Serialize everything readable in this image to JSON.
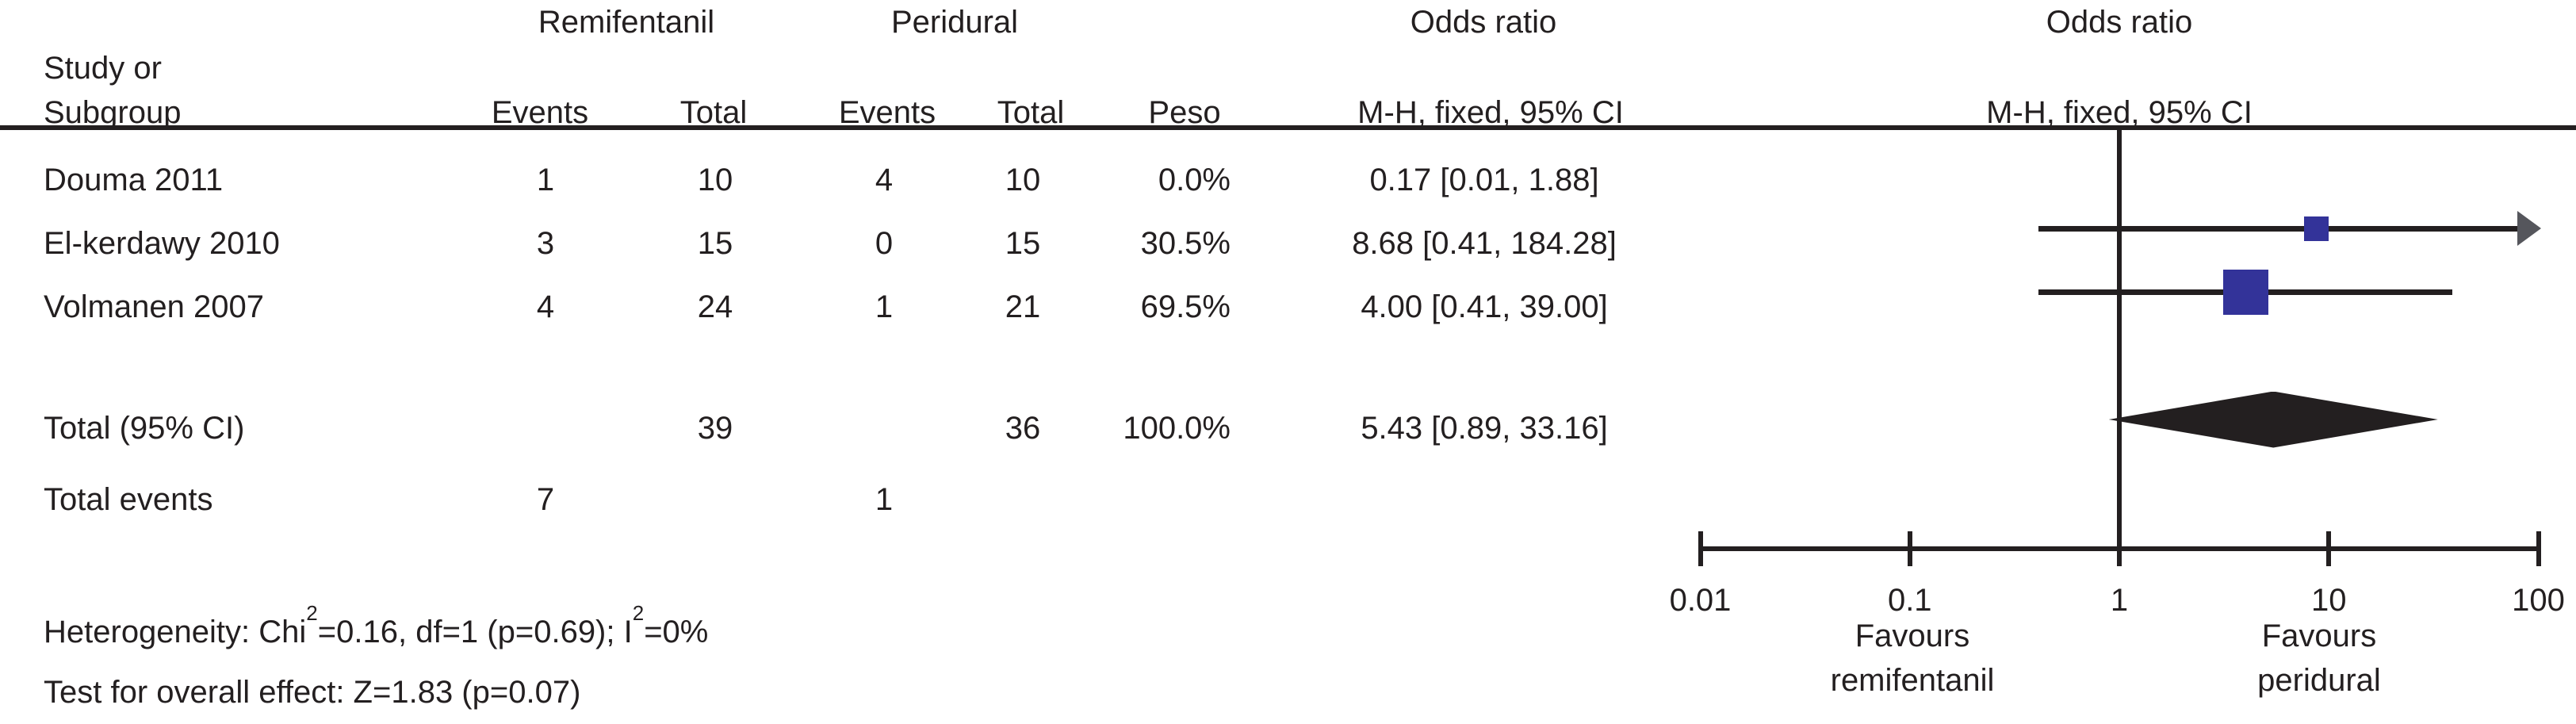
{
  "figure": {
    "group_headers": {
      "remifentanil": "Remifentanil",
      "peridural": "Peridural",
      "odds_ratio_left": "Odds ratio",
      "odds_ratio_right": "Odds ratio"
    },
    "col_headers": {
      "study_line1": "Study or",
      "study_line2": "Subgroup",
      "events_remi": "Events",
      "total_remi": "Total",
      "events_peri": "Events",
      "total_peri": "Total",
      "weight": "Peso",
      "mh_left": "M-H, fixed, 95% CI",
      "mh_right": "M-H, fixed, 95% CI"
    },
    "footnotes": {
      "het_1": "Heterogeneity: Chi",
      "het_sup1": "2",
      "het_2": "=0.16, df=1 (p=0.69); I",
      "het_sup2": "2",
      "het_3": "=0%",
      "overall": "Test for overall effect: Z=1.83 (p=0.07)"
    }
  },
  "chart_data": {
    "type": "forest",
    "effect_measure": "Odds ratio",
    "method": "M-H, fixed, 95% CI",
    "x_scale": "log10",
    "x_range": [
      0.01,
      100
    ],
    "x_tick_values": [
      0.01,
      0.1,
      1,
      10,
      100
    ],
    "x_tick_labels": [
      "0.01",
      "0.1",
      "1",
      "10",
      "100"
    ],
    "favours_left": [
      "Favours",
      "remifentanil"
    ],
    "favours_right": [
      "Favours",
      "peridural"
    ],
    "studies": [
      {
        "name": "Douma 2011",
        "events_remi": "1",
        "total_remi": "10",
        "events_peri": "4",
        "total_peri": "10",
        "weight": 0.0,
        "weight_text": "0.0%",
        "or": 0.17,
        "ci_low": 0.01,
        "ci_high": 1.88,
        "or_text": "0.17 [0.01, 1.88]"
      },
      {
        "name": "El-kerdawy 2010",
        "events_remi": "3",
        "total_remi": "15",
        "events_peri": "0",
        "total_peri": "15",
        "weight": 30.5,
        "weight_text": "30.5%",
        "or": 8.68,
        "ci_low": 0.41,
        "ci_high": 184.28,
        "or_text": "8.68 [0.41, 184.28]"
      },
      {
        "name": "Volmanen 2007",
        "events_remi": "4",
        "total_remi": "24",
        "events_peri": "1",
        "total_peri": "21",
        "weight": 69.5,
        "weight_text": "69.5%",
        "or": 4.0,
        "ci_low": 0.41,
        "ci_high": 39.0,
        "or_text": "4.00 [0.41, 39.00]"
      }
    ],
    "total": {
      "name": "Total (95% CI)",
      "total_remi": "39",
      "total_peri": "36",
      "weight_text": "100.0%",
      "or": 5.43,
      "ci_low": 0.89,
      "ci_high": 33.16,
      "or_text": "5.43 [0.89, 33.16]"
    },
    "total_events": {
      "name": "Total events",
      "events_remi": "7",
      "events_peri": "1"
    }
  },
  "colors": {
    "square": "#333399",
    "diamond": "#231f20",
    "ci_line": "#231f20",
    "arrow": "#55565c",
    "rule": "#231f20",
    "text": "#231f20"
  }
}
